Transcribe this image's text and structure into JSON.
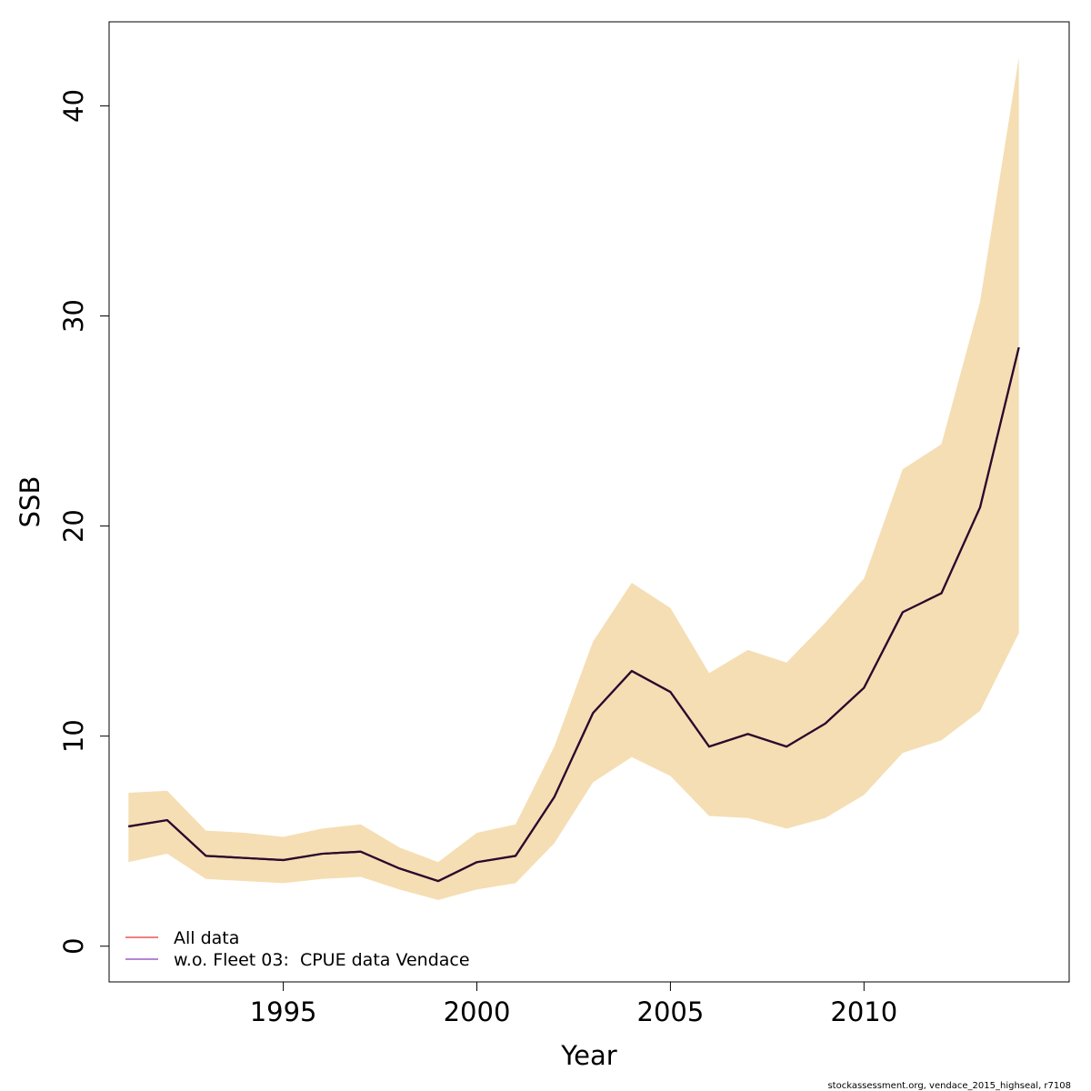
{
  "chart_data": {
    "type": "line",
    "xlabel": "Year",
    "ylabel": "SSB",
    "xlim": [
      1990.5,
      2015.3
    ],
    "ylim": [
      -1.7,
      44.0
    ],
    "x_ticks": [
      1995,
      2000,
      2005,
      2010
    ],
    "y_ticks": [
      0,
      10,
      20,
      30,
      40
    ],
    "x": [
      1991,
      1992,
      1993,
      1994,
      1995,
      1996,
      1997,
      1998,
      1999,
      2000,
      2001,
      2002,
      2003,
      2004,
      2005,
      2006,
      2007,
      2008,
      2009,
      2010,
      2011,
      2012,
      2013,
      2014
    ],
    "series": [
      {
        "name": "All data",
        "color": "#F08080",
        "values": [
          5.7,
          6.0,
          4.3,
          4.2,
          4.1,
          4.4,
          4.5,
          3.7,
          3.1,
          4.0,
          4.3,
          7.1,
          11.1,
          13.1,
          12.1,
          9.5,
          10.1,
          9.5,
          10.6,
          12.3,
          15.9,
          16.8,
          20.9,
          28.5
        ]
      },
      {
        "name": "w.o. Fleet 03:  CPUE data Vendace",
        "color": "#B685D3",
        "values": [
          5.7,
          6.0,
          4.3,
          4.2,
          4.1,
          4.4,
          4.5,
          3.7,
          3.1,
          4.0,
          4.3,
          7.1,
          11.1,
          13.1,
          12.1,
          9.5,
          10.1,
          9.5,
          10.6,
          12.3,
          15.9,
          16.8,
          20.9,
          28.5
        ]
      }
    ],
    "estimate_line_color": "#2B0A2E",
    "confidence_band": {
      "color": "#F5DEB3",
      "lower": [
        4.0,
        4.4,
        3.2,
        3.1,
        3.0,
        3.2,
        3.3,
        2.7,
        2.2,
        2.7,
        3.0,
        4.9,
        7.8,
        9.0,
        8.1,
        6.2,
        6.1,
        5.6,
        6.1,
        7.2,
        9.2,
        9.8,
        11.2,
        14.9
      ],
      "upper": [
        7.3,
        7.4,
        5.5,
        5.4,
        5.2,
        5.6,
        5.8,
        4.7,
        4.0,
        5.4,
        5.8,
        9.5,
        14.5,
        17.3,
        16.1,
        13.0,
        14.1,
        13.5,
        15.4,
        17.5,
        22.7,
        23.9,
        30.7,
        42.3
      ]
    },
    "grid": false,
    "legend_position": "bottom-left"
  },
  "legend": {
    "items": [
      {
        "label": "All data",
        "color": "#F08080"
      },
      {
        "label": "w.o. Fleet 03:  CPUE data Vendace",
        "color": "#B685D3"
      }
    ]
  },
  "credit": "stockassessment.org, vendace_2015_highseal, r7108"
}
